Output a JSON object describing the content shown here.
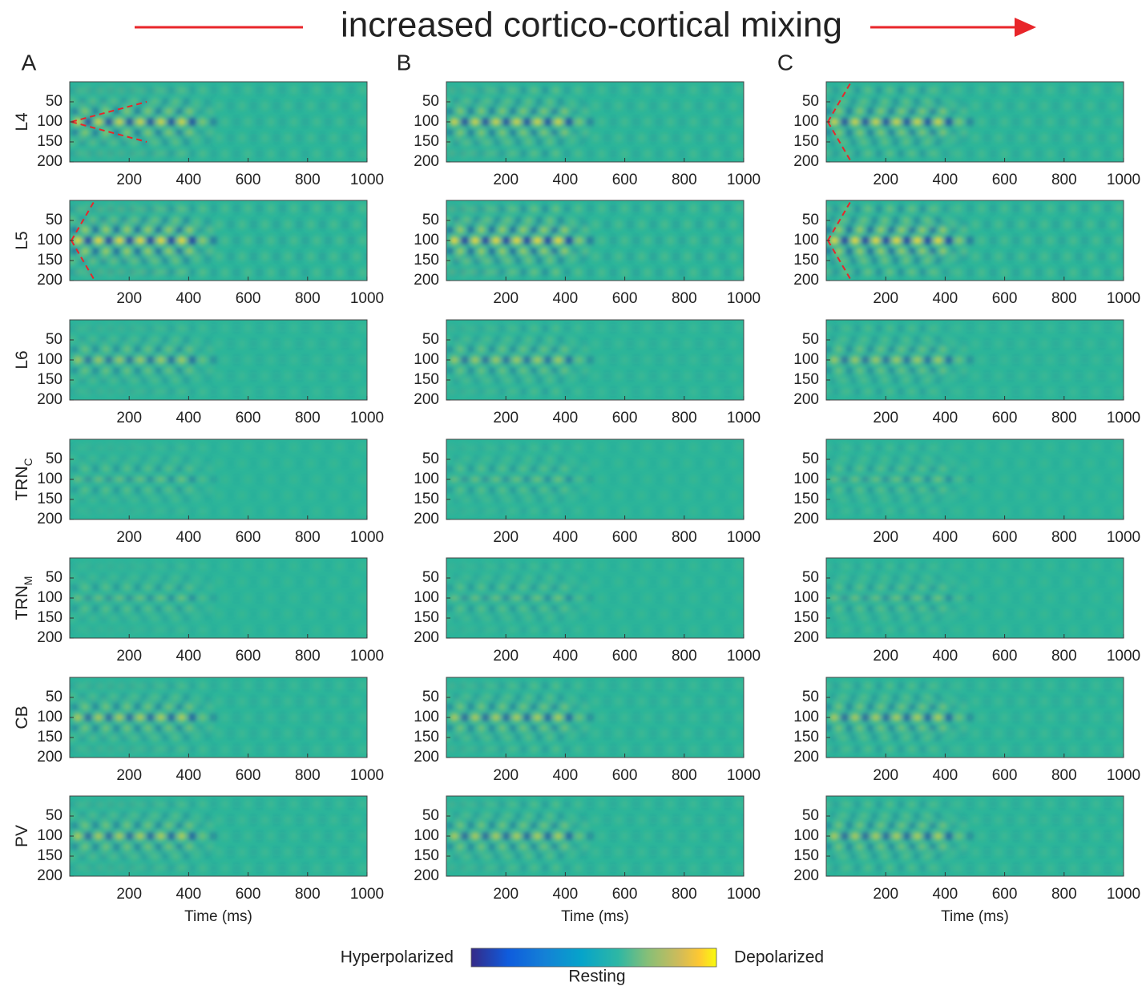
{
  "title": "increased cortico-cortical mixing",
  "columns": [
    "A",
    "B",
    "C"
  ],
  "rows": [
    {
      "label": "L4"
    },
    {
      "label": "L5"
    },
    {
      "label": "L6"
    },
    {
      "label": "TRN",
      "subscript": "C"
    },
    {
      "label": "TRN",
      "subscript": "M"
    },
    {
      "label": "CB"
    },
    {
      "label": "PV"
    }
  ],
  "axes": {
    "xlim": [
      0,
      1000
    ],
    "ylim": [
      0,
      200
    ],
    "xticks": [
      200,
      400,
      600,
      800,
      1000
    ],
    "yticks": [
      50,
      100,
      150,
      200
    ],
    "xlabel": "Time (ms)"
  },
  "colorbar": {
    "low": "Hyperpolarized",
    "mid": "Resting",
    "high": "Depolarized"
  }
}
